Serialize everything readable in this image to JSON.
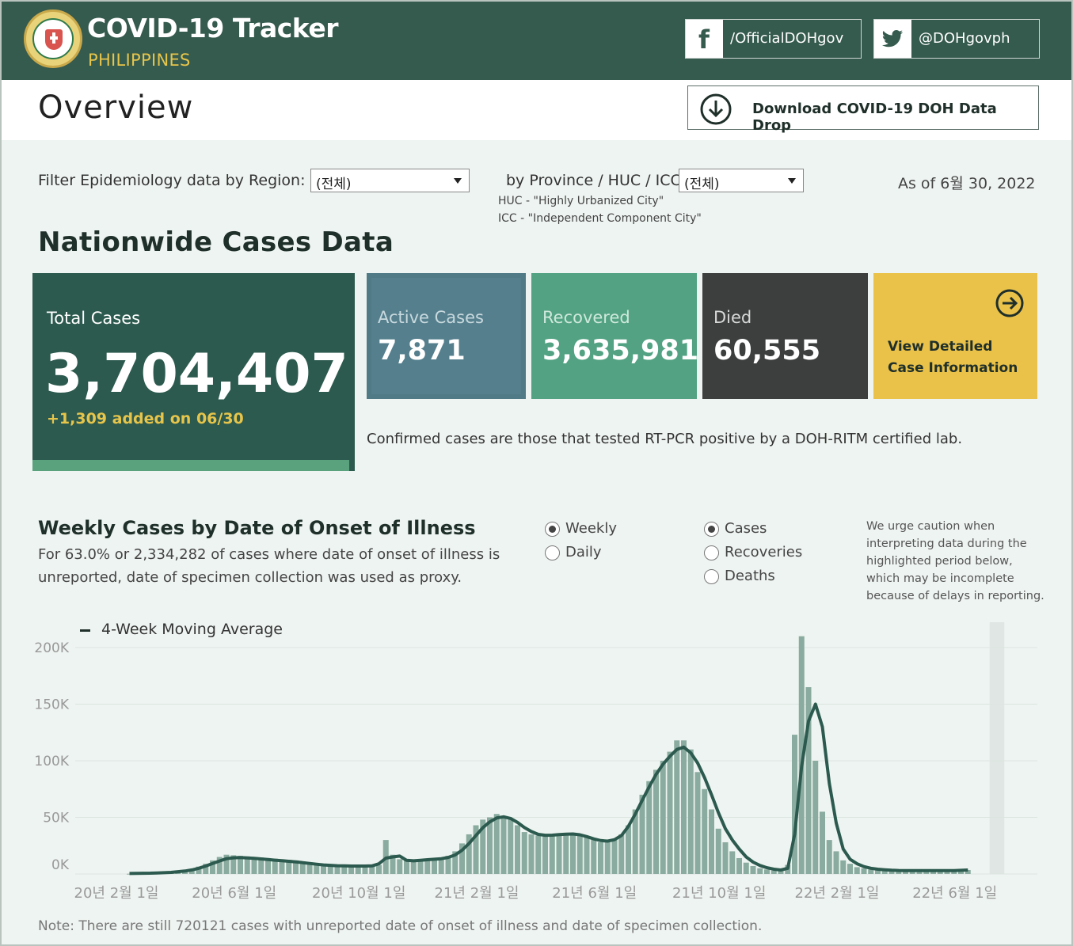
{
  "header": {
    "title": "COVID-19 Tracker",
    "subtitle": "PHILIPPINES",
    "facebook": "/OfficialDOHgov",
    "twitter": "@DOHgovph",
    "logo_icon": "doh-seal-icon"
  },
  "overview": {
    "title": "Overview",
    "download_label": "Download COVID-19 DOH Data Drop"
  },
  "filters": {
    "region_label": "Filter Epidemiology data by Region:",
    "region_value": "(전체)",
    "province_label": "by Province / HUC / ICC:",
    "province_value": "(전체)",
    "huc_note": "HUC - \"Highly Urbanized City\"",
    "icc_note": "ICC - \"Independent Component City\"",
    "as_of": "As of 6월 30, 2022"
  },
  "nationwide": {
    "title": "Nationwide Cases Data",
    "total_label": "Total Cases",
    "total_value": "3,704,407",
    "total_added": "+1,309 added on 06/30",
    "active_label": "Active Cases",
    "active_value": "7,871",
    "recovered_label": "Recovered",
    "recovered_value": "3,635,981",
    "died_label": "Died",
    "died_value": "60,555",
    "view_label": "View Detailed Case Information",
    "confirmed_note": "Confirmed cases are those that tested RT-PCR positive by a DOH-RITM certified lab."
  },
  "weekly": {
    "title": "Weekly Cases by Date of Onset of Illness",
    "description": "For 63.0% or 2,334,282 of cases where date of onset of illness is unreported, date of specimen collection was used as proxy.",
    "period_options": [
      {
        "label": "Weekly",
        "selected": true
      },
      {
        "label": "Daily",
        "selected": false
      }
    ],
    "measure_options": [
      {
        "label": "Cases",
        "selected": true
      },
      {
        "label": "Recoveries",
        "selected": false
      },
      {
        "label": "Deaths",
        "selected": false
      }
    ],
    "caution": "We urge caution when interpreting data during the highlighted period below, which may be incomplete because of delays in reporting.",
    "legend": "4-Week Moving Average",
    "footnote": "Note: There are still 720121 cases with unreported date of onset of illness and date of specimen collection."
  },
  "chart_data": {
    "type": "bar",
    "title": "Weekly Cases by Date of Onset of Illness",
    "xlabel": "",
    "ylabel": "",
    "ylim": [
      0,
      220000
    ],
    "yticks": [
      "0K",
      "50K",
      "100K",
      "150K",
      "200K"
    ],
    "ytick_values": [
      0,
      50000,
      100000,
      150000,
      200000
    ],
    "x_tick_labels": [
      "20년 2월 1일",
      "20년 6월 1일",
      "20년 10월 1일",
      "21년 2월 1일",
      "21년 6월 1일",
      "21년 10월 1일",
      "22년 2월 1일",
      "22년 6월 1일"
    ],
    "x_tick_weeks": [
      0,
      17,
      35,
      52,
      69,
      87,
      104,
      121
    ],
    "grid": true,
    "legend_position": "top-left",
    "highlighted_period_weeks": [
      125,
      126
    ],
    "bar_color": "#8aab9f",
    "line_color": "#2c5a4e",
    "series": [
      {
        "name": "Weekly cases",
        "values": [
          200,
          300,
          400,
          600,
          800,
          1200,
          1600,
          2200,
          3000,
          4500,
          6500,
          9000,
          12000,
          15000,
          17000,
          16500,
          16000,
          15500,
          15000,
          14500,
          14000,
          13500,
          13000,
          12500,
          12000,
          11000,
          10000,
          9000,
          8500,
          8000,
          7500,
          7000,
          7000,
          7000,
          7000,
          7000,
          8000,
          30000,
          17000,
          13000,
          12000,
          12500,
          13000,
          12500,
          13000,
          14000,
          16000,
          20000,
          27000,
          35000,
          43000,
          48000,
          50000,
          53000,
          51000,
          48000,
          43000,
          37000,
          35000,
          34000,
          34000,
          35000,
          35000,
          35000,
          36000,
          35000,
          33000,
          30000,
          28000,
          28000,
          30000,
          35000,
          43000,
          57000,
          70000,
          82000,
          92000,
          100000,
          108000,
          118000,
          118000,
          110000,
          90000,
          75000,
          57000,
          40000,
          28000,
          20000,
          14000,
          10000,
          7000,
          5000,
          4000,
          3000,
          3000,
          8000,
          123000,
          210000,
          165000,
          100000,
          55000,
          30000,
          20000,
          12000,
          9000,
          6000,
          5000,
          4000,
          3500,
          3000,
          3000,
          3000,
          3000,
          3000,
          3000,
          3000,
          3000,
          3000,
          3000,
          3000,
          3500,
          3500
        ]
      },
      {
        "name": "4-Week Moving Average",
        "values": [
          400,
          500,
          600,
          700,
          900,
          1100,
          1400,
          2000,
          2600,
          3600,
          5000,
          7000,
          9300,
          11500,
          13500,
          14300,
          14500,
          14200,
          13800,
          13300,
          12700,
          12200,
          11700,
          11200,
          10600,
          10000,
          9300,
          8600,
          8000,
          7600,
          7300,
          7100,
          7000,
          7000,
          7000,
          7100,
          9000,
          14000,
          15000,
          15800,
          12000,
          11600,
          12100,
          12600,
          13000,
          13500,
          14600,
          16800,
          21000,
          27000,
          34000,
          41000,
          46000,
          49500,
          50500,
          49000,
          45500,
          41000,
          37500,
          35000,
          34200,
          34300,
          34800,
          35100,
          35300,
          34600,
          33000,
          31000,
          29500,
          29000,
          30300,
          34000,
          42000,
          53000,
          65000,
          77000,
          88000,
          97000,
          104000,
          110000,
          112000,
          107000,
          98000,
          85000,
          70000,
          54000,
          40000,
          30000,
          22000,
          15000,
          10500,
          7500,
          5500,
          4200,
          3500,
          5000,
          35000,
          95000,
          135000,
          150000,
          130000,
          80000,
          45000,
          22000,
          13000,
          9000,
          6500,
          5000,
          4200,
          3700,
          3300,
          3100,
          3000,
          3000,
          3000,
          3000,
          3000,
          3000,
          3000,
          3000,
          3200,
          3500
        ]
      }
    ]
  }
}
